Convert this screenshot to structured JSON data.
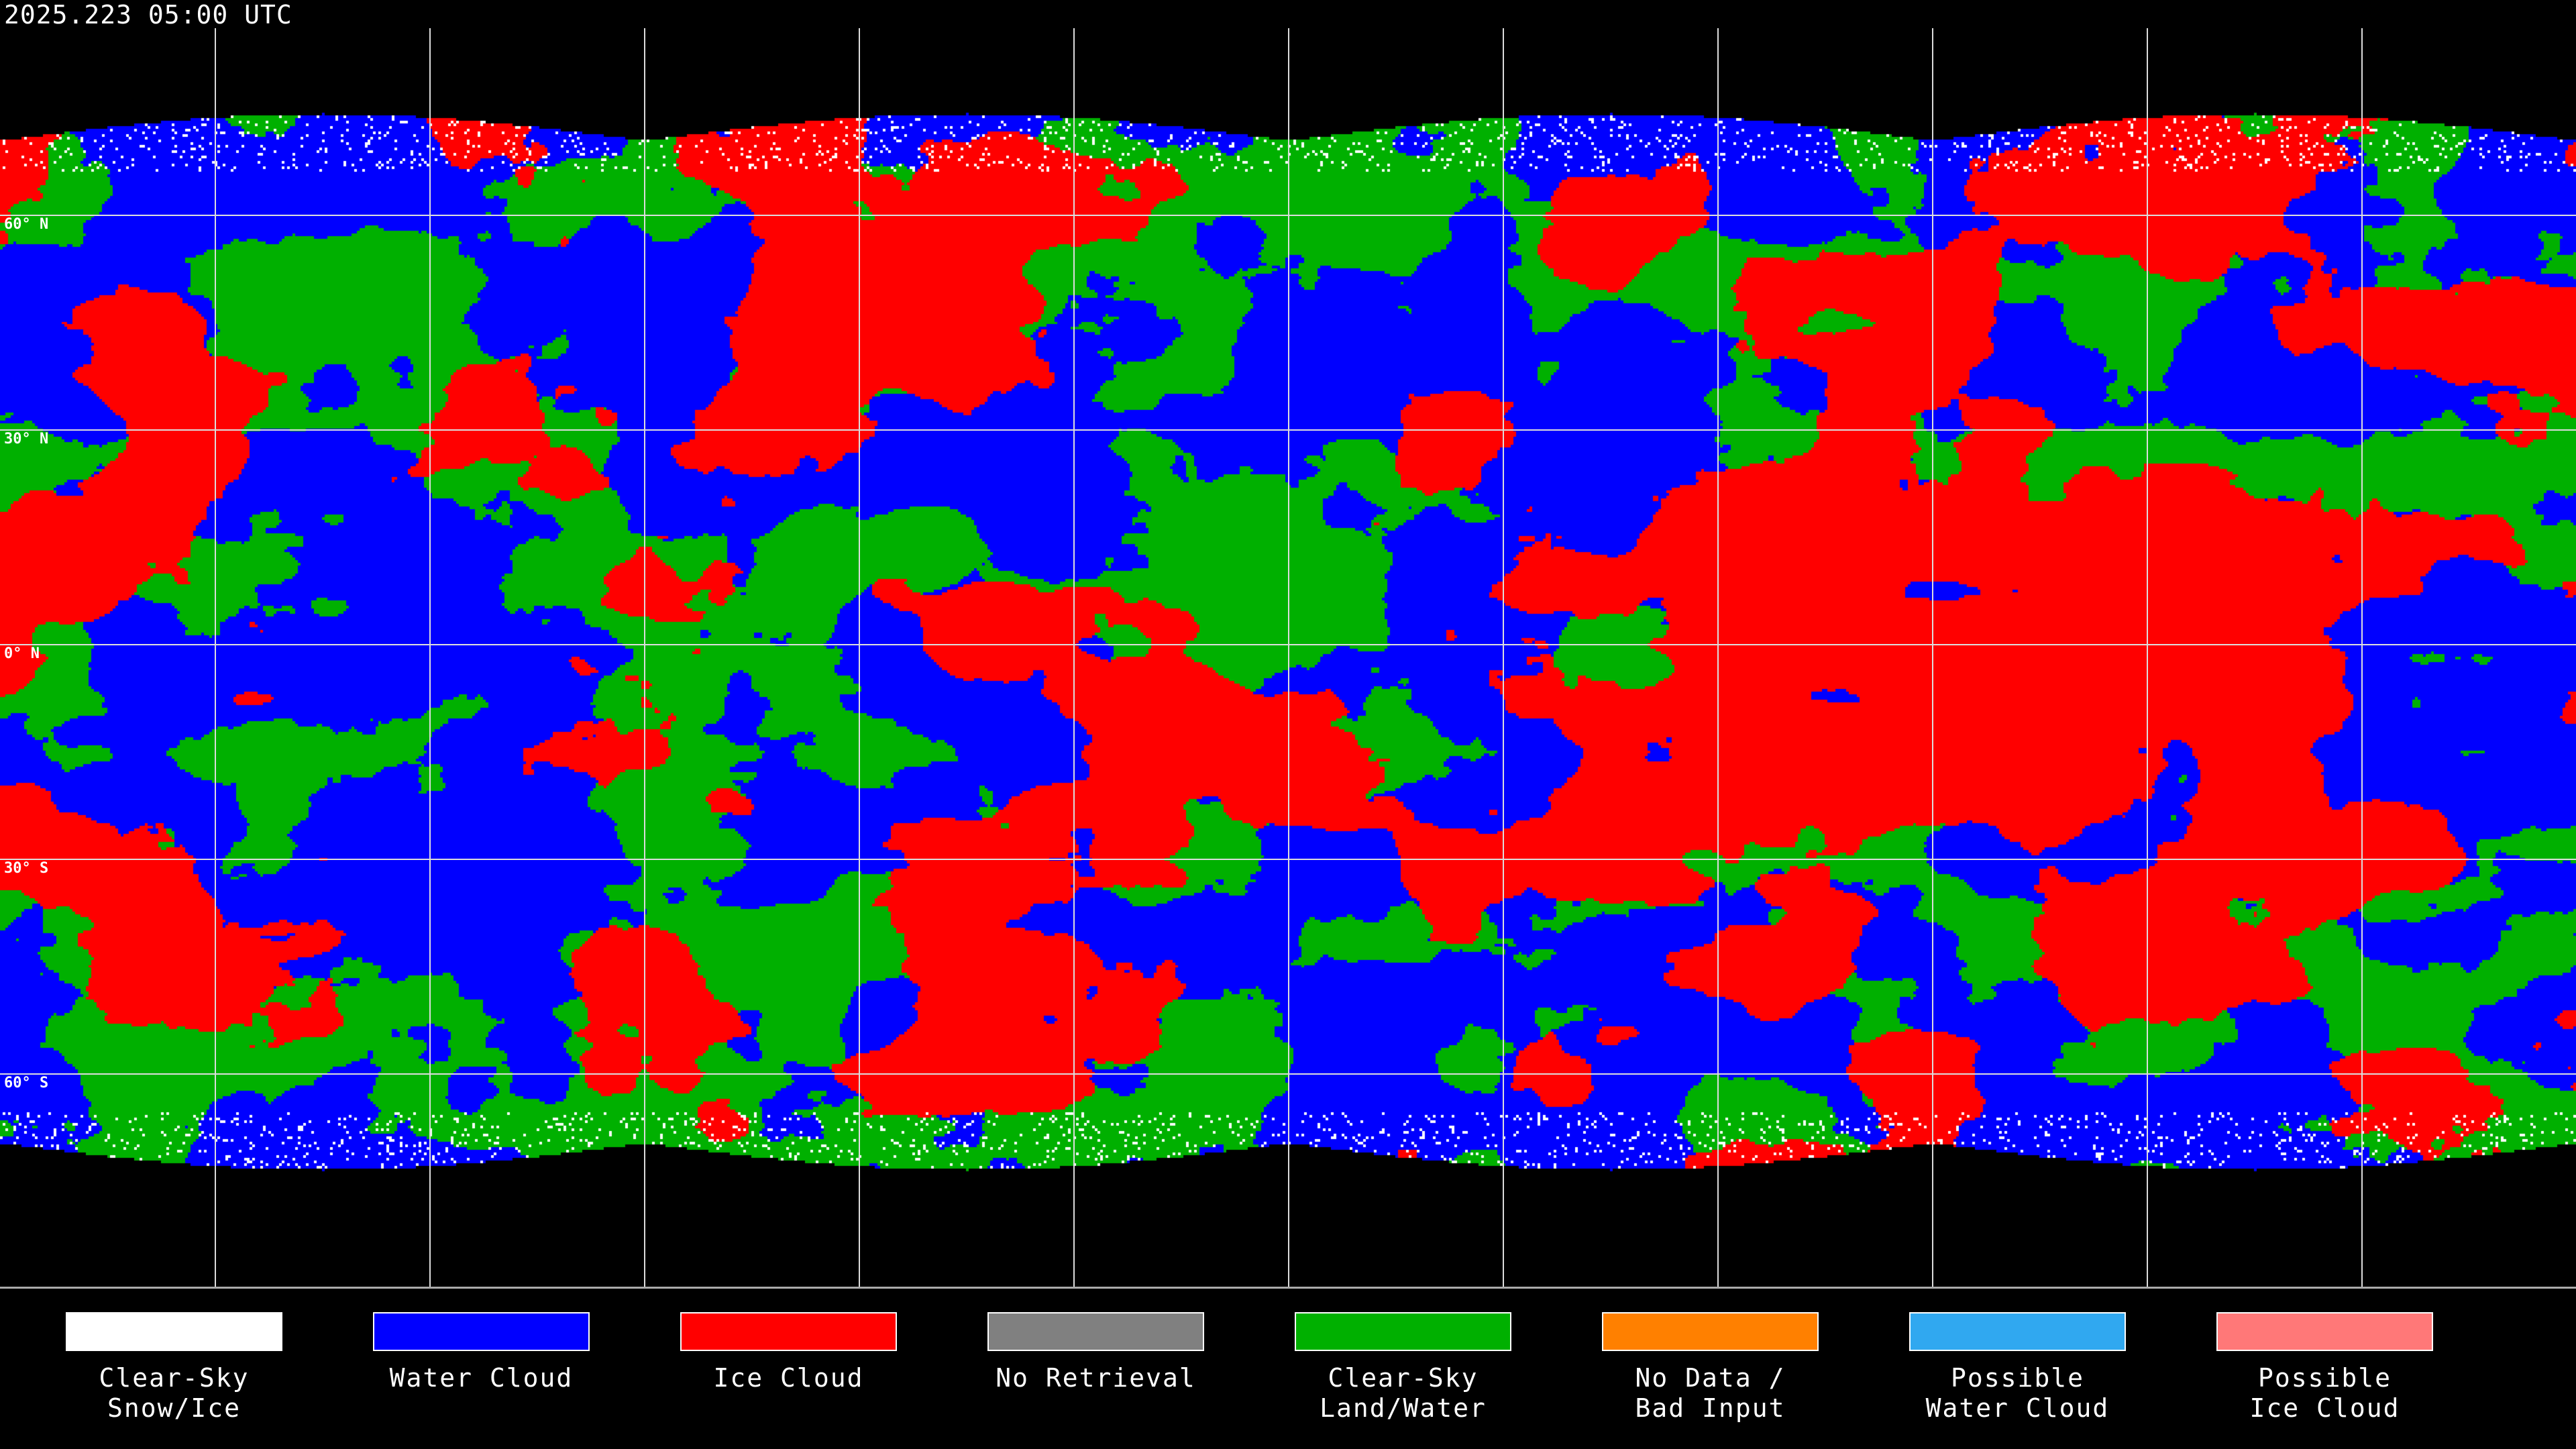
{
  "title": "2025.223 05:00 UTC",
  "map": {
    "projection": "equirectangular",
    "lat_labels": [
      "60° N",
      "30° N",
      "0° N",
      "30° S",
      "60° S"
    ],
    "class_colors": {
      "clear_sky_snow_ice": "#ffffff",
      "water_cloud": "#0000ff",
      "ice_cloud": "#ff0000",
      "no_retrieval": "#808080",
      "clear_sky_land_water": "#00b000",
      "no_data": "#ff8000",
      "possible_water_cloud": "#30a8f0",
      "possible_ice_cloud": "#ff7878"
    }
  },
  "legend": [
    {
      "label": "Clear-Sky\nSnow/Ice",
      "color": "#ffffff"
    },
    {
      "label": "Water Cloud",
      "color": "#0000ff"
    },
    {
      "label": "Ice Cloud",
      "color": "#ff0000"
    },
    {
      "label": "No Retrieval",
      "color": "#808080"
    },
    {
      "label": "Clear-Sky\nLand/Water",
      "color": "#00b000"
    },
    {
      "label": "No Data /\nBad Input",
      "color": "#ff8000"
    },
    {
      "label": "Possible\nWater Cloud",
      "color": "#30a8f0"
    },
    {
      "label": "Possible\nIce Cloud",
      "color": "#ff7878"
    }
  ]
}
